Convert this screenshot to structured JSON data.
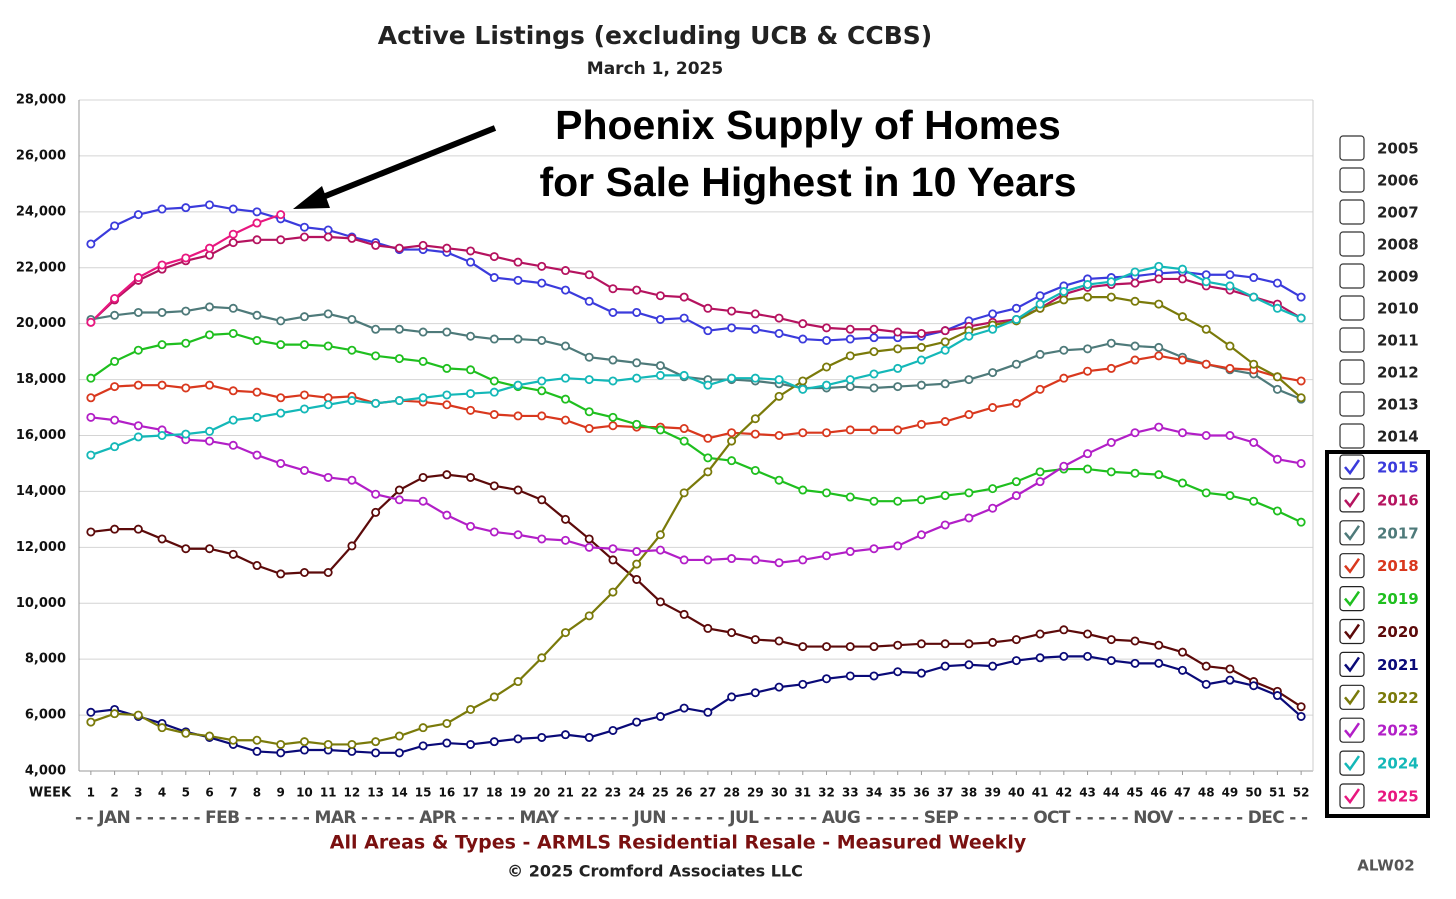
{
  "chart_data": {
    "type": "line",
    "title": "Active Listings (excluding UCB & CCBS)",
    "subtitle": "March 1, 2025",
    "annotation": [
      "Phoenix Supply of Homes",
      "for Sale Highest in 10 Years"
    ],
    "x_axis_label": "WEEK",
    "month_axis": "- - JAN - - - - - - FEB - - - - - - MAR - - - - - APR - - - - - MAY - - - - - - JUN - - - - - JUL - - - - - AUG - - - - - SEP - - - - - - OCT - - - - - NOV - - - - - - DEC - -",
    "footer": "All Areas & Types - ARMLS Residential Resale - Measured Weekly",
    "copyright": "© 2025 Cromford Associates LLC",
    "code": "ALW02",
    "legend_unchecked": [
      "2005",
      "2006",
      "2007",
      "2008",
      "2009",
      "2010",
      "2011",
      "2012",
      "2013",
      "2014"
    ],
    "grid": true,
    "x": [
      1,
      2,
      3,
      4,
      5,
      6,
      7,
      8,
      9,
      10,
      11,
      12,
      13,
      14,
      15,
      16,
      17,
      18,
      19,
      20,
      21,
      22,
      23,
      24,
      25,
      26,
      27,
      28,
      29,
      30,
      31,
      32,
      33,
      34,
      35,
      36,
      37,
      38,
      39,
      40,
      41,
      42,
      43,
      44,
      45,
      46,
      47,
      48,
      49,
      50,
      51,
      52
    ],
    "xlim": [
      0.5,
      52.5
    ],
    "xticks": [
      1,
      2,
      3,
      4,
      5,
      6,
      7,
      8,
      9,
      10,
      11,
      12,
      13,
      14,
      15,
      16,
      17,
      18,
      19,
      20,
      21,
      22,
      23,
      24,
      25,
      26,
      27,
      28,
      29,
      30,
      31,
      32,
      33,
      34,
      35,
      36,
      37,
      38,
      39,
      40,
      41,
      42,
      43,
      44,
      45,
      46,
      47,
      48,
      49,
      50,
      51,
      52
    ],
    "ylim": [
      4000,
      28000
    ],
    "yticks": [
      {
        "value": 4000,
        "label": "4,000"
      },
      {
        "value": 6000,
        "label": "6,000"
      },
      {
        "value": 8000,
        "label": "8,000"
      },
      {
        "value": 10000,
        "label": "10,000"
      },
      {
        "value": 12000,
        "label": "12,000"
      },
      {
        "value": 14000,
        "label": "14,000"
      },
      {
        "value": 16000,
        "label": "16,000"
      },
      {
        "value": 18000,
        "label": "18,000"
      },
      {
        "value": 20000,
        "label": "20,000"
      },
      {
        "value": 22000,
        "label": "22,000"
      },
      {
        "value": 24000,
        "label": "24,000"
      },
      {
        "value": 26000,
        "label": "26,000"
      },
      {
        "value": 28000,
        "label": "28,000"
      }
    ],
    "series": [
      {
        "name": "2015",
        "color": "#3b3bdc",
        "values": [
          22850,
          23500,
          23900,
          24100,
          24150,
          24250,
          24100,
          24000,
          23750,
          23450,
          23350,
          23100,
          22900,
          22650,
          22650,
          22550,
          22200,
          21650,
          21550,
          21450,
          21200,
          20800,
          20400,
          20400,
          20150,
          20200,
          19750,
          19850,
          19800,
          19650,
          19450,
          19400,
          19450,
          19500,
          19500,
          19550,
          19750,
          20100,
          20350,
          20550,
          21000,
          21350,
          21600,
          21650,
          21700,
          21800,
          21850,
          21750,
          21750,
          21650,
          21450,
          20950
        ]
      },
      {
        "name": "2016",
        "color": "#b5135f",
        "values": [
          20050,
          20850,
          21550,
          21950,
          22250,
          22450,
          22900,
          23000,
          23000,
          23100,
          23100,
          23050,
          22800,
          22700,
          22800,
          22700,
          22600,
          22400,
          22200,
          22050,
          21900,
          21750,
          21250,
          21200,
          21000,
          20950,
          20550,
          20450,
          20350,
          20200,
          20000,
          19850,
          19800,
          19800,
          19700,
          19650,
          19750,
          19900,
          20050,
          20150,
          20550,
          21050,
          21300,
          21400,
          21450,
          21600,
          21600,
          21350,
          21200,
          20950,
          20700,
          20200
        ]
      },
      {
        "name": "2017",
        "color": "#4e7a7a",
        "values": [
          20150,
          20300,
          20400,
          20400,
          20450,
          20600,
          20550,
          20300,
          20100,
          20250,
          20350,
          20150,
          19800,
          19800,
          19700,
          19700,
          19550,
          19450,
          19450,
          19400,
          19200,
          18800,
          18700,
          18600,
          18500,
          18100,
          18000,
          18000,
          17950,
          17850,
          17700,
          17700,
          17750,
          17700,
          17750,
          17800,
          17850,
          18000,
          18250,
          18550,
          18900,
          19050,
          19100,
          19300,
          19200,
          19150,
          18800,
          18550,
          18350,
          18200,
          17650,
          17300
        ]
      },
      {
        "name": "2018",
        "color": "#d9381e",
        "values": [
          17350,
          17750,
          17800,
          17800,
          17700,
          17800,
          17600,
          17550,
          17350,
          17450,
          17350,
          17400,
          17150,
          17250,
          17200,
          17100,
          16900,
          16750,
          16700,
          16700,
          16550,
          16250,
          16350,
          16300,
          16300,
          16250,
          15900,
          16100,
          16050,
          16000,
          16100,
          16100,
          16200,
          16200,
          16200,
          16400,
          16500,
          16750,
          17000,
          17150,
          17650,
          18050,
          18300,
          18400,
          18700,
          18850,
          18700,
          18550,
          18400,
          18350,
          18100,
          17950
        ]
      },
      {
        "name": "2019",
        "color": "#1fbf1f",
        "values": [
          18050,
          18650,
          19050,
          19250,
          19300,
          19600,
          19650,
          19400,
          19250,
          19250,
          19200,
          19050,
          18850,
          18750,
          18650,
          18400,
          18350,
          17950,
          17750,
          17600,
          17300,
          16850,
          16650,
          16400,
          16200,
          15800,
          15200,
          15100,
          14750,
          14400,
          14050,
          13950,
          13800,
          13650,
          13650,
          13700,
          13850,
          13950,
          14100,
          14350,
          14700,
          14800,
          14800,
          14700,
          14650,
          14600,
          14300,
          13950,
          13850,
          13650,
          13300,
          12900
        ]
      },
      {
        "name": "2020",
        "color": "#5c0a0a",
        "values": [
          12550,
          12650,
          12650,
          12300,
          11950,
          11950,
          11750,
          11350,
          11050,
          11100,
          11100,
          12050,
          13250,
          14050,
          14500,
          14600,
          14500,
          14200,
          14050,
          13700,
          13000,
          12300,
          11550,
          10850,
          10050,
          9600,
          9100,
          8950,
          8700,
          8650,
          8450,
          8450,
          8450,
          8450,
          8500,
          8550,
          8550,
          8550,
          8600,
          8700,
          8900,
          9050,
          8900,
          8700,
          8650,
          8500,
          8250,
          7750,
          7650,
          7200,
          6850,
          6300
        ]
      },
      {
        "name": "2021",
        "color": "#0a0a78",
        "values": [
          6100,
          6200,
          5950,
          5700,
          5400,
          5200,
          4950,
          4700,
          4650,
          4750,
          4750,
          4700,
          4650,
          4650,
          4900,
          5000,
          4950,
          5050,
          5150,
          5200,
          5300,
          5200,
          5450,
          5750,
          5950,
          6250,
          6100,
          6650,
          6800,
          7000,
          7100,
          7300,
          7400,
          7400,
          7550,
          7500,
          7750,
          7800,
          7750,
          7950,
          8050,
          8100,
          8100,
          7950,
          7850,
          7850,
          7600,
          7100,
          7250,
          7050,
          6700,
          5950
        ]
      },
      {
        "name": "2022",
        "color": "#7a7a0a",
        "values": [
          5750,
          6050,
          6000,
          5550,
          5350,
          5250,
          5100,
          5100,
          4950,
          5050,
          4950,
          4950,
          5050,
          5250,
          5550,
          5700,
          6200,
          6650,
          7200,
          8050,
          8950,
          9550,
          10400,
          11400,
          12450,
          13950,
          14700,
          15800,
          16600,
          17400,
          17950,
          18450,
          18850,
          19000,
          19100,
          19150,
          19350,
          19750,
          19950,
          20100,
          20550,
          20850,
          20950,
          20950,
          20800,
          20700,
          20250,
          19800,
          19200,
          18550,
          18100,
          17350
        ]
      },
      {
        "name": "2023",
        "color": "#b21fc7",
        "values": [
          16650,
          16550,
          16350,
          16200,
          15850,
          15800,
          15650,
          15300,
          15000,
          14750,
          14500,
          14400,
          13900,
          13700,
          13650,
          13150,
          12750,
          12550,
          12450,
          12300,
          12250,
          12000,
          11950,
          11850,
          11900,
          11550,
          11550,
          11600,
          11550,
          11450,
          11550,
          11700,
          11850,
          11950,
          12050,
          12450,
          12800,
          13050,
          13400,
          13850,
          14350,
          14900,
          15350,
          15750,
          16100,
          16300,
          16100,
          16000,
          16000,
          15750,
          15150,
          15000
        ]
      },
      {
        "name": "2024",
        "color": "#14b8b8",
        "values": [
          15300,
          15600,
          15950,
          16000,
          16050,
          16150,
          16550,
          16650,
          16800,
          16950,
          17100,
          17250,
          17150,
          17250,
          17350,
          17450,
          17500,
          17550,
          17800,
          17950,
          18050,
          18000,
          17950,
          18050,
          18150,
          18150,
          17800,
          18050,
          18050,
          18000,
          17650,
          17800,
          18000,
          18200,
          18400,
          18700,
          19050,
          19550,
          19800,
          20150,
          20700,
          21150,
          21400,
          21500,
          21850,
          22050,
          21950,
          21500,
          21350,
          20950,
          20550,
          20200
        ]
      },
      {
        "name": "2025",
        "color": "#e8177f",
        "values": [
          20050,
          20900,
          21650,
          22100,
          22350,
          22700,
          23200,
          23600,
          23900,
          null,
          null,
          null,
          null,
          null,
          null,
          null,
          null,
          null,
          null,
          null,
          null,
          null,
          null,
          null,
          null,
          null,
          null,
          null,
          null,
          null,
          null,
          null,
          null,
          null,
          null,
          null,
          null,
          null,
          null,
          null,
          null,
          null,
          null,
          null,
          null,
          null,
          null,
          null,
          null,
          null,
          null,
          null
        ]
      }
    ]
  }
}
